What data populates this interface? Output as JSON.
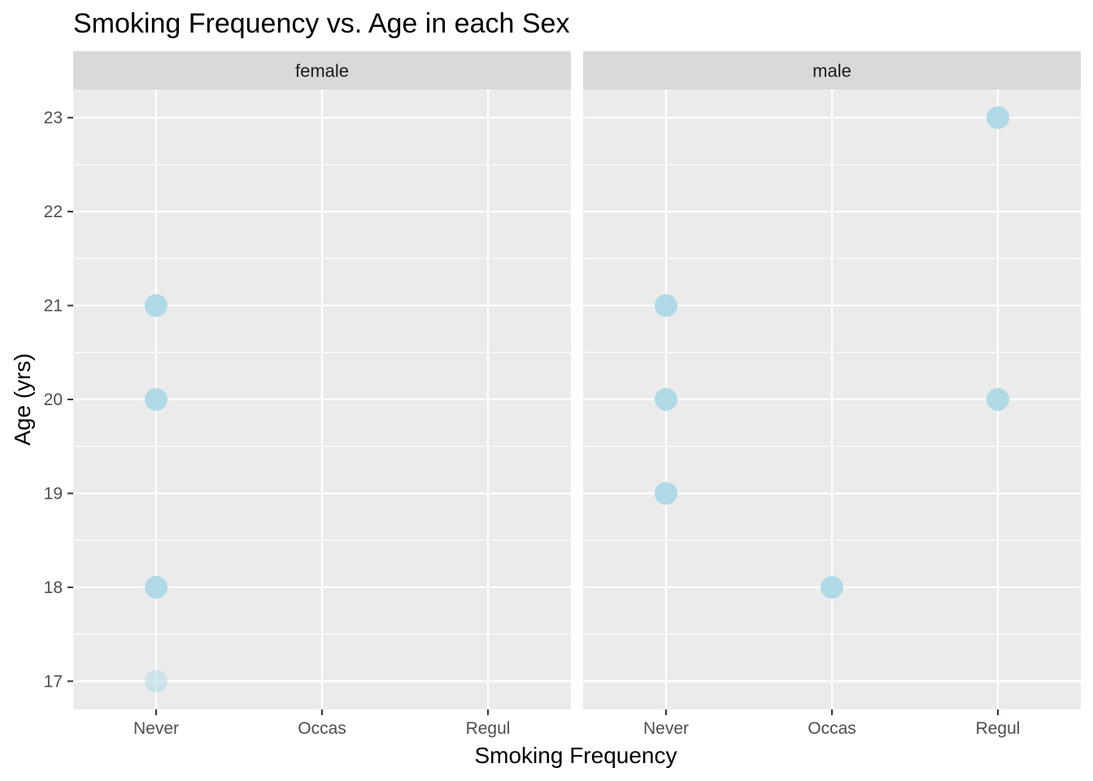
{
  "chart_data": {
    "type": "scatter",
    "title": "Smoking Frequency vs. Age in each Sex",
    "xlabel": "Smoking Frequency",
    "ylabel": "Age (yrs)",
    "categories": [
      "Never",
      "Occas",
      "Regul"
    ],
    "ylim": [
      16.7,
      23.3
    ],
    "yticks": [
      "17",
      "18",
      "19",
      "20",
      "21",
      "22",
      "23"
    ],
    "grid": true,
    "point_color": "#add8e6",
    "panel_background": "#ebebeb",
    "strip_background": "#d9d9d9",
    "panels": [
      {
        "label": "female",
        "points": [
          {
            "x": "Never",
            "y": 21,
            "alpha": 0.95
          },
          {
            "x": "Never",
            "y": 20,
            "alpha": 0.95
          },
          {
            "x": "Never",
            "y": 18,
            "alpha": 0.95
          },
          {
            "x": "Never",
            "y": 17,
            "alpha": 0.5
          }
        ]
      },
      {
        "label": "male",
        "points": [
          {
            "x": "Regul",
            "y": 23,
            "alpha": 0.95
          },
          {
            "x": "Never",
            "y": 21,
            "alpha": 0.95
          },
          {
            "x": "Never",
            "y": 20,
            "alpha": 0.95
          },
          {
            "x": "Regul",
            "y": 20,
            "alpha": 0.95
          },
          {
            "x": "Never",
            "y": 19,
            "alpha": 0.95
          },
          {
            "x": "Occas",
            "y": 18,
            "alpha": 0.95
          }
        ]
      }
    ]
  }
}
